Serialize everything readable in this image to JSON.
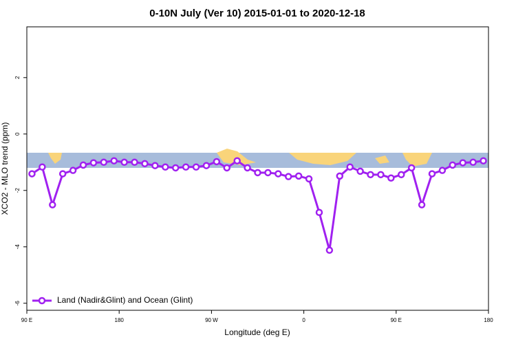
{
  "chart_data": {
    "type": "line",
    "title": "0-10N July (Ver 10)   2015-01-01 to 2020-12-18",
    "x_label": "Longitude (deg E)",
    "y_label": "XCO2 - MLO trend (ppm)",
    "x": [
      95,
      105,
      115,
      125,
      135,
      145,
      155,
      165,
      175,
      185,
      195,
      205,
      215,
      225,
      235,
      245,
      255,
      265,
      275,
      285,
      295,
      305,
      315,
      325,
      335,
      345,
      355,
      365,
      375,
      385,
      395,
      405,
      415,
      425,
      435,
      445,
      455,
      465,
      475,
      485,
      495,
      505,
      515,
      525,
      535
    ],
    "series": [
      {
        "name": "Land (Nadir&Glint) and Ocean (Glint)",
        "color": "#a020f0",
        "values": [
          -1.41,
          -1.17,
          -2.51,
          -1.41,
          -1.29,
          -1.1,
          -1.02,
          -1.0,
          -0.95,
          -1.0,
          -1.0,
          -1.05,
          -1.12,
          -1.17,
          -1.2,
          -1.17,
          -1.17,
          -1.12,
          -0.98,
          -1.2,
          -0.95,
          -1.2,
          -1.37,
          -1.37,
          -1.41,
          -1.51,
          -1.49,
          -1.59,
          -2.78,
          -4.12,
          -1.49,
          -1.17,
          -1.32,
          -1.44,
          -1.44,
          -1.56,
          -1.44,
          -1.2,
          -2.51,
          -1.41,
          -1.29,
          -1.1,
          -1.02,
          -1.0,
          -0.95
        ]
      }
    ],
    "xlim": [
      90,
      540
    ],
    "xticks": [
      {
        "value": 90,
        "label": "90 E"
      },
      180,
      {
        "value": 270,
        "label": "90 W"
      },
      {
        "value": 360,
        "label": "0"
      },
      {
        "value": 450,
        "label": "90 E"
      },
      {
        "value": 540,
        "label": "180"
      }
    ],
    "ylim": [
      -6.25,
      3.8
    ],
    "yticks": [
      -6,
      -4,
      -2,
      0,
      2
    ],
    "legend": "bottom-left"
  }
}
